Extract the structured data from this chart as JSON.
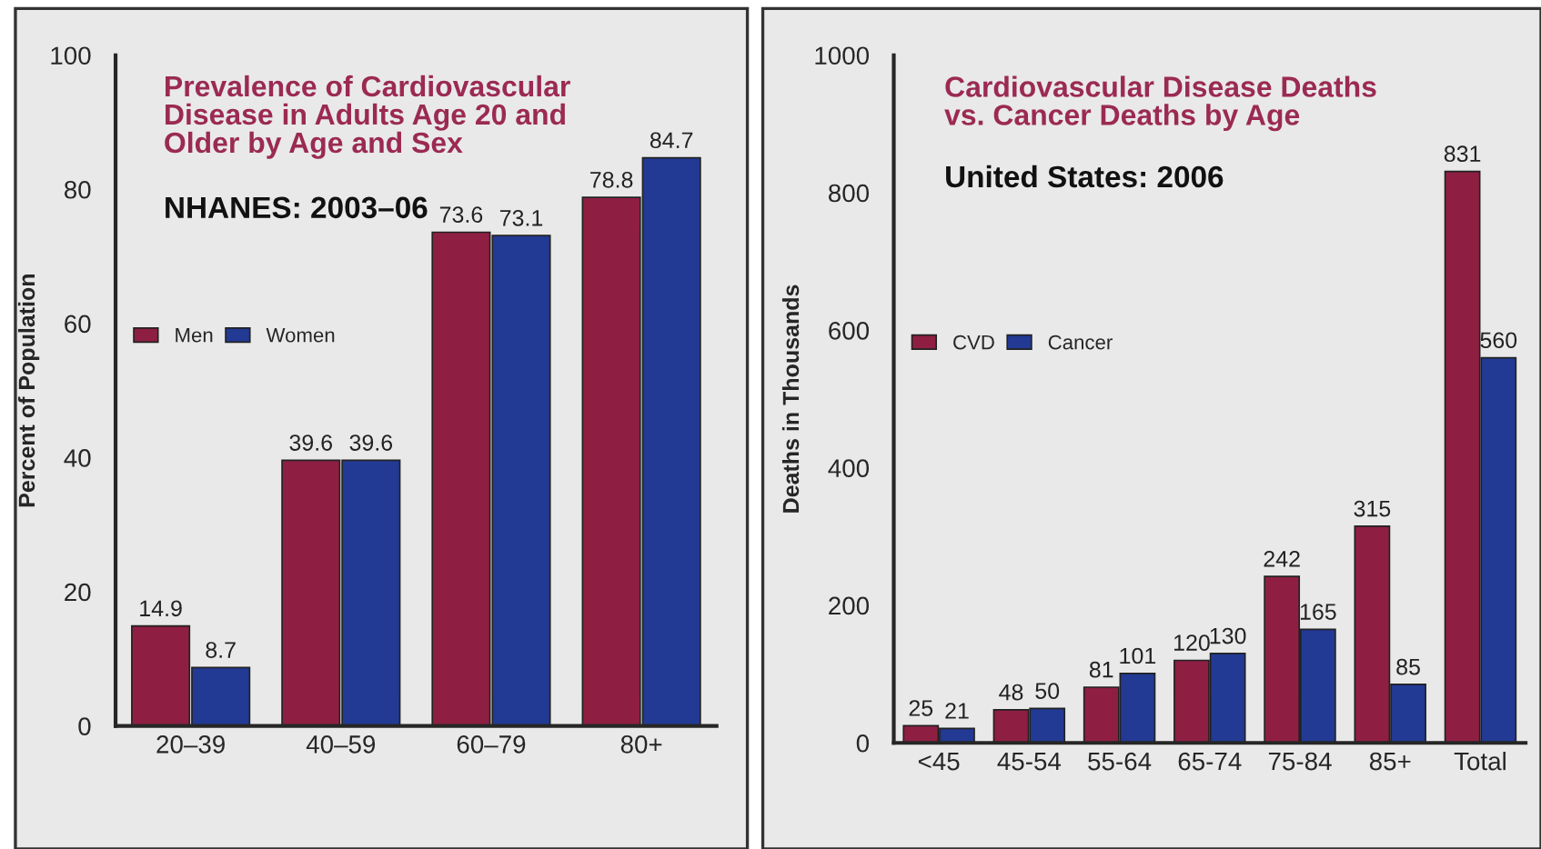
{
  "chart_data": [
    {
      "type": "bar",
      "title": "Prevalence of Cardiovascular\nDisease in Adults Age 20 and\nOlder by Age and Sex",
      "subtitle": "NHANES: 2003–06",
      "ylabel": "Percent of Population",
      "categories": [
        "20–39",
        "40–59",
        "60–79",
        "80+"
      ],
      "series": [
        {
          "name": "Men",
          "color": "#8e1f43",
          "values": [
            14.9,
            39.6,
            73.6,
            78.8
          ]
        },
        {
          "name": "Women",
          "color": "#223a94",
          "values": [
            8.7,
            39.6,
            73.1,
            84.7
          ]
        }
      ],
      "ylim": [
        0,
        100
      ],
      "yticks": [
        0,
        20,
        40,
        60,
        80,
        100
      ],
      "grid": false,
      "legend": "left",
      "data_labels": true
    },
    {
      "type": "bar",
      "title": "Cardiovascular Disease Deaths\nvs. Cancer Deaths by Age",
      "subtitle": "United States: 2006",
      "ylabel": "Deaths in Thousands",
      "categories": [
        "<45",
        "45-54",
        "55-64",
        "65-74",
        "75-84",
        "85+",
        "Total"
      ],
      "series": [
        {
          "name": "CVD",
          "color": "#8e1f43",
          "values": [
            25,
            48,
            81,
            120,
            242,
            315,
            831
          ]
        },
        {
          "name": "Cancer",
          "color": "#223a94",
          "values": [
            21,
            50,
            101,
            130,
            165,
            85,
            560
          ]
        }
      ],
      "ylim": [
        0,
        1000
      ],
      "yticks": [
        0,
        200,
        400,
        600,
        800,
        1000
      ],
      "grid": false,
      "legend": "left",
      "data_labels": true
    }
  ]
}
